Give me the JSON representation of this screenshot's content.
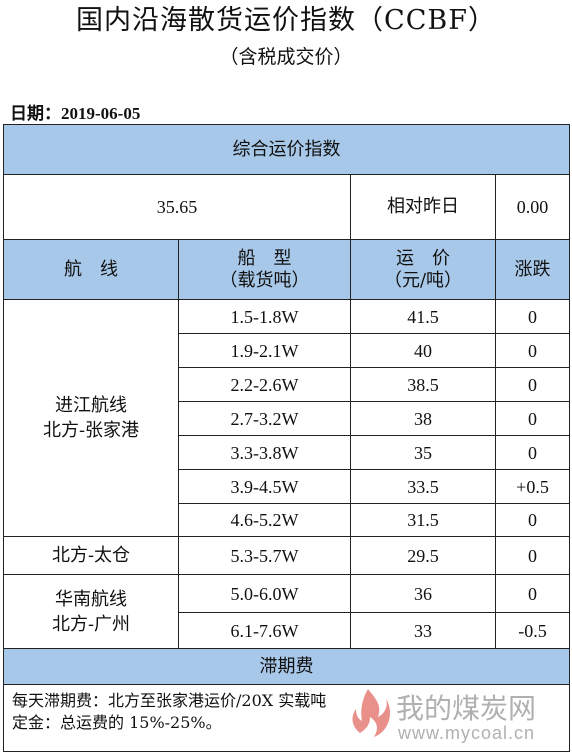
{
  "header": {
    "title": "国内沿海散货运价指数（CCBF）",
    "subtitle": "（含税成交价）",
    "date": "日期：2019-06-05"
  },
  "summary": {
    "section_label": "综合运价指数",
    "index_value": "35.65",
    "compare_label": "相对昨日",
    "compare_value": "0.00"
  },
  "columns": {
    "route": "航　线",
    "ship_type_line1": "船　型",
    "ship_type_line2": "（载货吨）",
    "freight_line1": "运　价",
    "freight_line2": "（元/吨）",
    "change": "涨跌"
  },
  "groups": [
    {
      "route_line1": "进江航线",
      "route_line2": "北方-张家港",
      "rows": [
        {
          "ship": "1.5-1.8W",
          "price": "41.5",
          "change": "0"
        },
        {
          "ship": "1.9-2.1W",
          "price": "40",
          "change": "0"
        },
        {
          "ship": "2.2-2.6W",
          "price": "38.5",
          "change": "0"
        },
        {
          "ship": "2.7-3.2W",
          "price": "38",
          "change": "0"
        },
        {
          "ship": "3.3-3.8W",
          "price": "35",
          "change": "0"
        },
        {
          "ship": "3.9-4.5W",
          "price": "33.5",
          "change": "+0.5"
        },
        {
          "ship": "4.6-5.2W",
          "price": "31.5",
          "change": "0"
        }
      ]
    },
    {
      "route_line1": "北方-太仓",
      "route_line2": "",
      "rows": [
        {
          "ship": "5.3-5.7W",
          "price": "29.5",
          "change": "0"
        }
      ]
    },
    {
      "route_line1": "华南航线",
      "route_line2": "北方-广州",
      "rows": [
        {
          "ship": "5.0-6.0W",
          "price": "36",
          "change": "0"
        },
        {
          "ship": "6.1-7.6W",
          "price": "33",
          "change": "-0.5"
        }
      ]
    }
  ],
  "demurrage": {
    "label": "滞期费",
    "note1": "每天滞期费：北方至张家港运价/20X 实载吨",
    "note2": "定金：总运费的 15%-25%。"
  },
  "watermark": {
    "text": "我的煤炭网",
    "url": "www.mycoal.cn",
    "logo_color": "#d9342b"
  }
}
